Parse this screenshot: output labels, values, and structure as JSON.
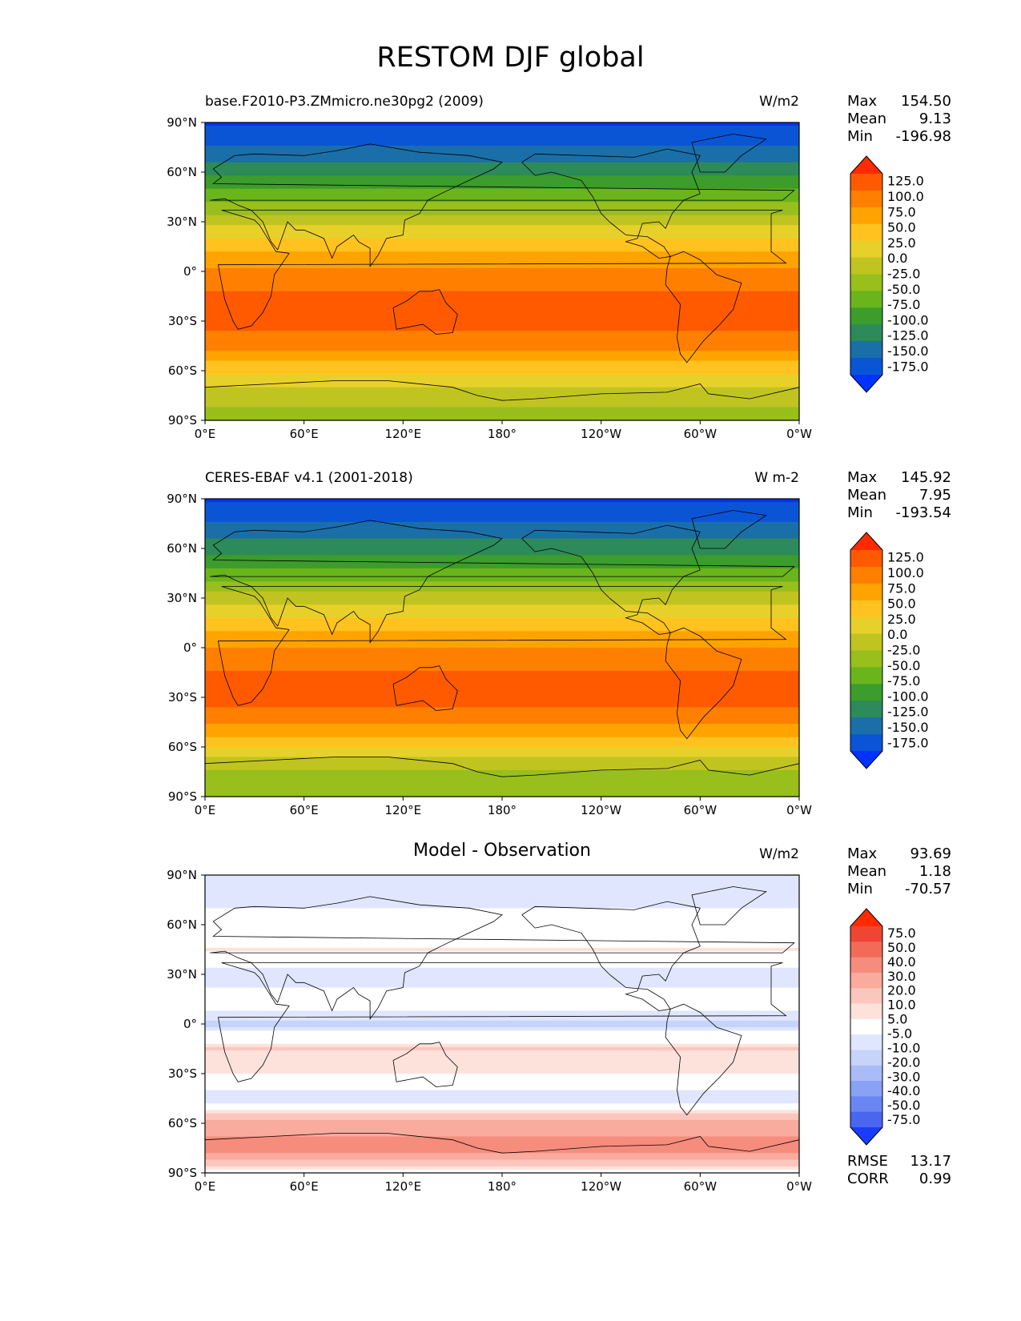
{
  "title": "RESTOM DJF global",
  "xticks": [
    "0°E",
    "60°E",
    "120°E",
    "180°",
    "120°W",
    "60°W",
    "0°W"
  ],
  "yticks": [
    "90°N",
    "60°N",
    "30°N",
    "0°",
    "30°S",
    "60°S",
    "90°S"
  ],
  "chart_data": [
    {
      "type": "heatmap",
      "title": "base.F2010-P3.ZMmicro.ne30pg2 (2009)",
      "units": "W/m2",
      "stats": {
        "Max": "154.50",
        "Mean": "9.13",
        "Min": "-196.98"
      },
      "colorbar": {
        "levels": [
          "125.0",
          "100.0",
          "75.0",
          "50.0",
          "25.0",
          "0.0",
          "-25.0",
          "-50.0",
          "-75.0",
          "-100.0",
          "-125.0",
          "-150.0",
          "-175.0"
        ],
        "colors": [
          "#ff2a00",
          "#ff5a00",
          "#ff7f00",
          "#ffa300",
          "#ffc21e",
          "#e8d02a",
          "#c0c420",
          "#98bf1c",
          "#6ab41c",
          "#3c9c2c",
          "#2d8a5a",
          "#1a6fa8",
          "#0a55d6",
          "#0033ff"
        ]
      },
      "zonal_profile": {
        "lat": [
          90,
          75,
          60,
          45,
          30,
          15,
          0,
          -15,
          -30,
          -45,
          -60,
          -75,
          -90
        ],
        "value": [
          -180,
          -150,
          -110,
          -60,
          -10,
          40,
          80,
          105,
          110,
          85,
          30,
          -20,
          -30
        ]
      }
    },
    {
      "type": "heatmap",
      "title": "CERES-EBAF v4.1 (2001-2018)",
      "units": "W m-2",
      "stats": {
        "Max": "145.92",
        "Mean": "7.95",
        "Min": "-193.54"
      },
      "colorbar": {
        "levels": [
          "125.0",
          "100.0",
          "75.0",
          "50.0",
          "25.0",
          "0.0",
          "-25.0",
          "-50.0",
          "-75.0",
          "-100.0",
          "-125.0",
          "-150.0",
          "-175.0"
        ],
        "colors": [
          "#ff2a00",
          "#ff5a00",
          "#ff7f00",
          "#ffa300",
          "#ffc21e",
          "#e8d02a",
          "#c0c420",
          "#98bf1c",
          "#6ab41c",
          "#3c9c2c",
          "#2d8a5a",
          "#1a6fa8",
          "#0a55d6",
          "#0033ff"
        ]
      },
      "zonal_profile": {
        "lat": [
          90,
          75,
          60,
          45,
          30,
          15,
          0,
          -15,
          -30,
          -45,
          -60,
          -75,
          -90
        ],
        "value": [
          -180,
          -150,
          -110,
          -65,
          -15,
          35,
          75,
          100,
          110,
          80,
          25,
          -30,
          -40
        ]
      }
    },
    {
      "type": "heatmap",
      "title": "Model - Observation",
      "units": "W/m2",
      "stats": {
        "Max": "93.69",
        "Mean": "1.18",
        "Min": "-70.57"
      },
      "extra_stats": {
        "RMSE": "13.17",
        "CORR": "0.99"
      },
      "colorbar": {
        "levels": [
          "75.0",
          "50.0",
          "40.0",
          "30.0",
          "20.0",
          "10.0",
          "5.0",
          "-5.0",
          "-10.0",
          "-20.0",
          "-30.0",
          "-40.0",
          "-50.0",
          "-75.0"
        ],
        "colors": [
          "#ff2a00",
          "#ee4633",
          "#f26a58",
          "#f68c7c",
          "#f9ab9d",
          "#fbc6bc",
          "#fde2dc",
          "#ffffff",
          "#dfe6fd",
          "#c6d3fb",
          "#a9bcf8",
          "#8aa2f5",
          "#6a86f2",
          "#4a66ef",
          "#1a3cff"
        ]
      },
      "zonal_profile": {
        "lat": [
          90,
          75,
          60,
          45,
          30,
          15,
          0,
          -15,
          -30,
          -45,
          -60,
          -75,
          -90
        ],
        "value": [
          -5,
          -8,
          0,
          5,
          -10,
          0,
          -12,
          10,
          5,
          -10,
          25,
          35,
          0
        ]
      }
    }
  ]
}
